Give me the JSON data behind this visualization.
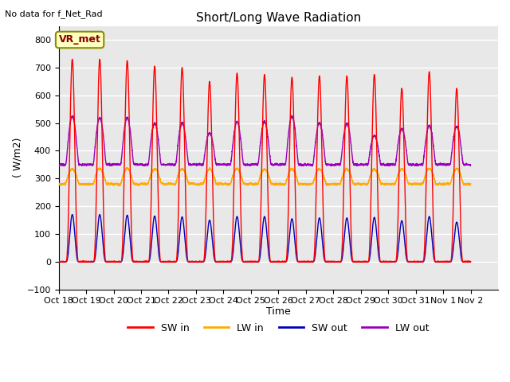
{
  "title": "Short/Long Wave Radiation",
  "xlabel": "Time",
  "ylabel": "( W/m2)",
  "ylim": [
    -100,
    850
  ],
  "xlim": [
    0,
    16
  ],
  "background_color": "#ffffff",
  "plot_bg_color": "#e8e8e8",
  "no_data_text": "No data for f_Net_Rad",
  "station_label": "VR_met",
  "x_tick_labels": [
    "Oct 18",
    "Oct 19",
    "Oct 20",
    "Oct 21",
    "Oct 22",
    "Oct 23",
    "Oct 24",
    "Oct 25",
    "Oct 26",
    "Oct 27",
    "Oct 28",
    "Oct 29",
    "Oct 30",
    "Oct 31",
    "Nov 1",
    "Nov 2"
  ],
  "legend_entries": [
    "SW in",
    "LW in",
    "SW out",
    "LW out"
  ],
  "legend_colors": [
    "#ff0000",
    "#ffaa00",
    "#0000bb",
    "#9900bb"
  ],
  "sw_in_peak_vals": [
    730,
    730,
    725,
    705,
    700,
    650,
    680,
    675,
    665,
    670,
    670,
    675,
    625,
    685,
    625
  ],
  "sw_out_peak_vals": [
    170,
    170,
    168,
    165,
    162,
    150,
    163,
    163,
    155,
    158,
    158,
    160,
    148,
    163,
    143
  ],
  "lw_in_base": 285,
  "lw_in_peak_extra": 50,
  "lw_out_night_base": 350,
  "lw_out_peak_vals": [
    525,
    520,
    520,
    500,
    500,
    465,
    505,
    505,
    525,
    500,
    500,
    455,
    480,
    490,
    490
  ]
}
